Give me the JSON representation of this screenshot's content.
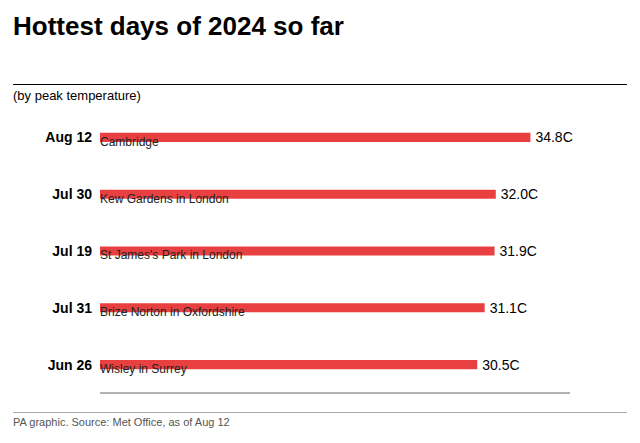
{
  "chart_data": {
    "type": "bar",
    "orientation": "horizontal",
    "title": "Hottest days of 2024 so far",
    "subtitle": "(by peak temperature)",
    "caption": "PA graphic. Source: Met Office, as of Aug 12",
    "categories": [
      "Aug 12",
      "Jul 30",
      "Jul 19",
      "Jul 31",
      "Jun 26"
    ],
    "annotations": [
      "Cambridge",
      "Kew Gardens in London",
      "St James's Park in London",
      "Brize Norton in Oxfordshire",
      "Wisley in Surrey"
    ],
    "values": [
      34.8,
      32.0,
      31.9,
      31.1,
      30.5
    ],
    "value_labels": [
      "34.8C",
      "32.0C",
      "31.9C",
      "31.1C",
      "30.5C"
    ],
    "data_labels": true,
    "color": "#e84040",
    "xlim": [
      0,
      38
    ],
    "tick_labels": false,
    "grid": false
  }
}
